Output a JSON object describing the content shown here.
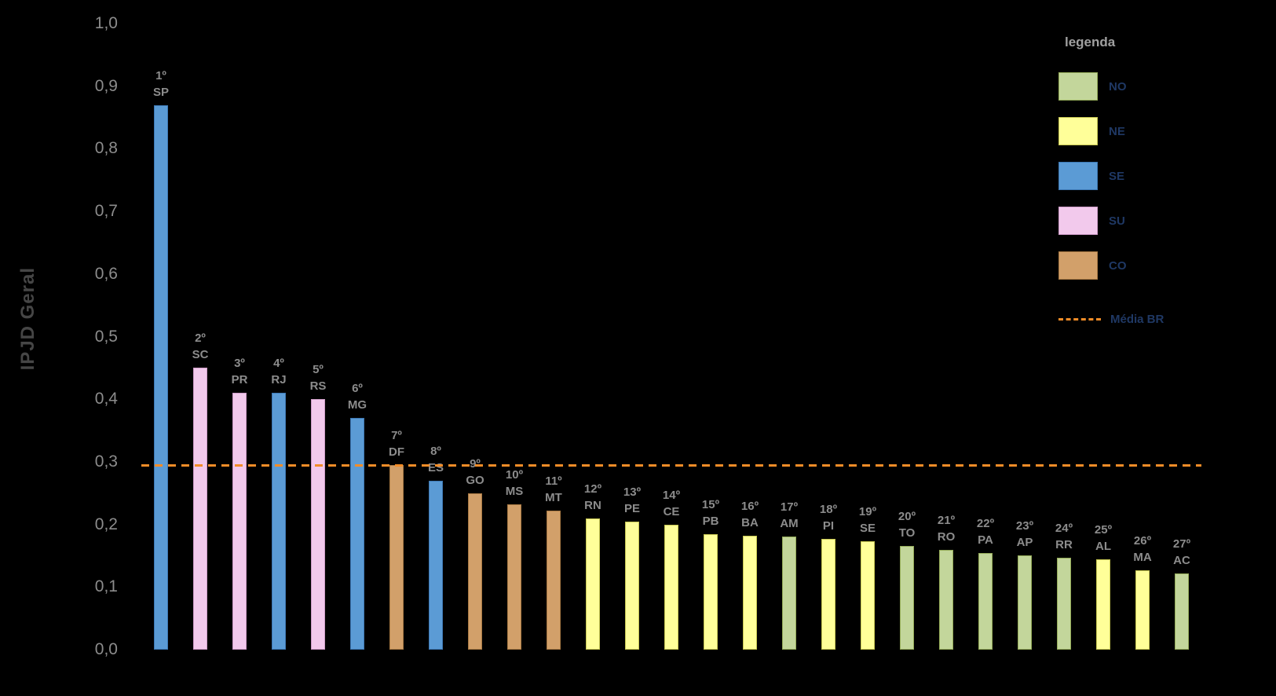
{
  "y_axis": {
    "title": "IPJD Geral",
    "ticks": [
      "1,0",
      "0,9",
      "0,8",
      "0,7",
      "0,6",
      "0,5",
      "0,4",
      "0,3",
      "0,2",
      "0,1",
      "0,0"
    ]
  },
  "legend": {
    "title": "legenda",
    "items": [
      {
        "label": "NO",
        "region": "NO"
      },
      {
        "label": "NE",
        "region": "NE"
      },
      {
        "label": "SE",
        "region": "SE"
      },
      {
        "label": "SU",
        "region": "SU"
      },
      {
        "label": "CO",
        "region": "CO"
      }
    ],
    "reference_label": "Média BR"
  },
  "chart_data": {
    "type": "bar",
    "title": "",
    "xlabel": "",
    "ylabel": "IPJD Geral",
    "ylim": [
      0,
      1.0
    ],
    "y_tick_step": 0.1,
    "grid": false,
    "legend_position": "top-right",
    "background": "#000000",
    "reference_line": {
      "value": 0.295,
      "label": "Média BR",
      "style": "dashed",
      "color": "#F28C28"
    },
    "regions": {
      "NO": {
        "fill": "#C3D69B",
        "border": "#95AC59"
      },
      "NE": {
        "fill": "#FFFF99",
        "border": "#C6C651"
      },
      "SE": {
        "fill": "#5B9BD5",
        "border": "#3D78B4"
      },
      "SU": {
        "fill": "#F2C9EC",
        "border": "#CE9CC7"
      },
      "CO": {
        "fill": "#D2A06A",
        "border": "#A97A44"
      }
    },
    "bars": [
      {
        "rank": "1º",
        "state": "SP",
        "region": "SE",
        "value": 0.87
      },
      {
        "rank": "2º",
        "state": "SC",
        "region": "SU",
        "value": 0.45
      },
      {
        "rank": "3º",
        "state": "PR",
        "region": "SU",
        "value": 0.41
      },
      {
        "rank": "4º",
        "state": "RJ",
        "region": "SE",
        "value": 0.41
      },
      {
        "rank": "5º",
        "state": "RS",
        "region": "SU",
        "value": 0.4
      },
      {
        "rank": "6º",
        "state": "MG",
        "region": "SE",
        "value": 0.37
      },
      {
        "rank": "7º",
        "state": "DF",
        "region": "CO",
        "value": 0.295
      },
      {
        "rank": "8º",
        "state": "ES",
        "region": "SE",
        "value": 0.27
      },
      {
        "rank": "9º",
        "state": "GO",
        "region": "CO",
        "value": 0.25
      },
      {
        "rank": "10º",
        "state": "MS",
        "region": "CO",
        "value": 0.232
      },
      {
        "rank": "11º",
        "state": "MT",
        "region": "CO",
        "value": 0.222
      },
      {
        "rank": "12º",
        "state": "RN",
        "region": "NE",
        "value": 0.21
      },
      {
        "rank": "13º",
        "state": "PE",
        "region": "NE",
        "value": 0.205
      },
      {
        "rank": "14º",
        "state": "CE",
        "region": "NE",
        "value": 0.2
      },
      {
        "rank": "15º",
        "state": "PB",
        "region": "NE",
        "value": 0.185
      },
      {
        "rank": "16º",
        "state": "BA",
        "region": "NE",
        "value": 0.182
      },
      {
        "rank": "17º",
        "state": "AM",
        "region": "NO",
        "value": 0.181
      },
      {
        "rank": "18º",
        "state": "PI",
        "region": "NE",
        "value": 0.177
      },
      {
        "rank": "19º",
        "state": "SE",
        "region": "NE",
        "value": 0.173
      },
      {
        "rank": "20º",
        "state": "TO",
        "region": "NO",
        "value": 0.166
      },
      {
        "rank": "21º",
        "state": "RO",
        "region": "NO",
        "value": 0.159
      },
      {
        "rank": "22º",
        "state": "PA",
        "region": "NO",
        "value": 0.154
      },
      {
        "rank": "23º",
        "state": "AP",
        "region": "NO",
        "value": 0.151
      },
      {
        "rank": "24º",
        "state": "RR",
        "region": "NO",
        "value": 0.147
      },
      {
        "rank": "25º",
        "state": "AL",
        "region": "NE",
        "value": 0.144
      },
      {
        "rank": "26º",
        "state": "MA",
        "region": "NE",
        "value": 0.127
      },
      {
        "rank": "27º",
        "state": "AC",
        "region": "NO",
        "value": 0.122
      }
    ]
  }
}
